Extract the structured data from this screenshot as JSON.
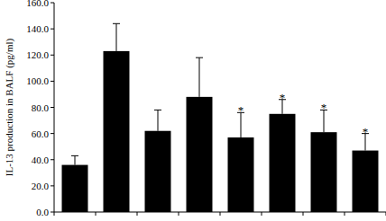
{
  "chart_data": {
    "type": "bar",
    "y_label": "IL-13 production in BALF (pg/ml)",
    "categories": [
      null,
      null,
      null,
      null,
      null,
      null,
      null,
      null
    ],
    "values": [
      36,
      123,
      62,
      88,
      57,
      75,
      61,
      47
    ],
    "errors": [
      7,
      21,
      16,
      30,
      19,
      11,
      17,
      13
    ],
    "annotations": [
      null,
      null,
      null,
      null,
      "*",
      "*",
      "*",
      "*"
    ],
    "color": "#000000",
    "ylim": [
      0,
      160
    ],
    "yticks": [
      {
        "value": 0,
        "label": "0.0"
      },
      {
        "value": 20,
        "label": "20.0"
      },
      {
        "value": 40,
        "label": "40.0"
      },
      {
        "value": 60,
        "label": "60.0"
      },
      {
        "value": 80,
        "label": "80.0"
      },
      {
        "value": 100,
        "label": "100.0"
      },
      {
        "value": 120,
        "label": "120.0"
      },
      {
        "value": 140,
        "label": "140.0"
      },
      {
        "value": 160,
        "label": "160.0"
      }
    ],
    "grid": false
  }
}
